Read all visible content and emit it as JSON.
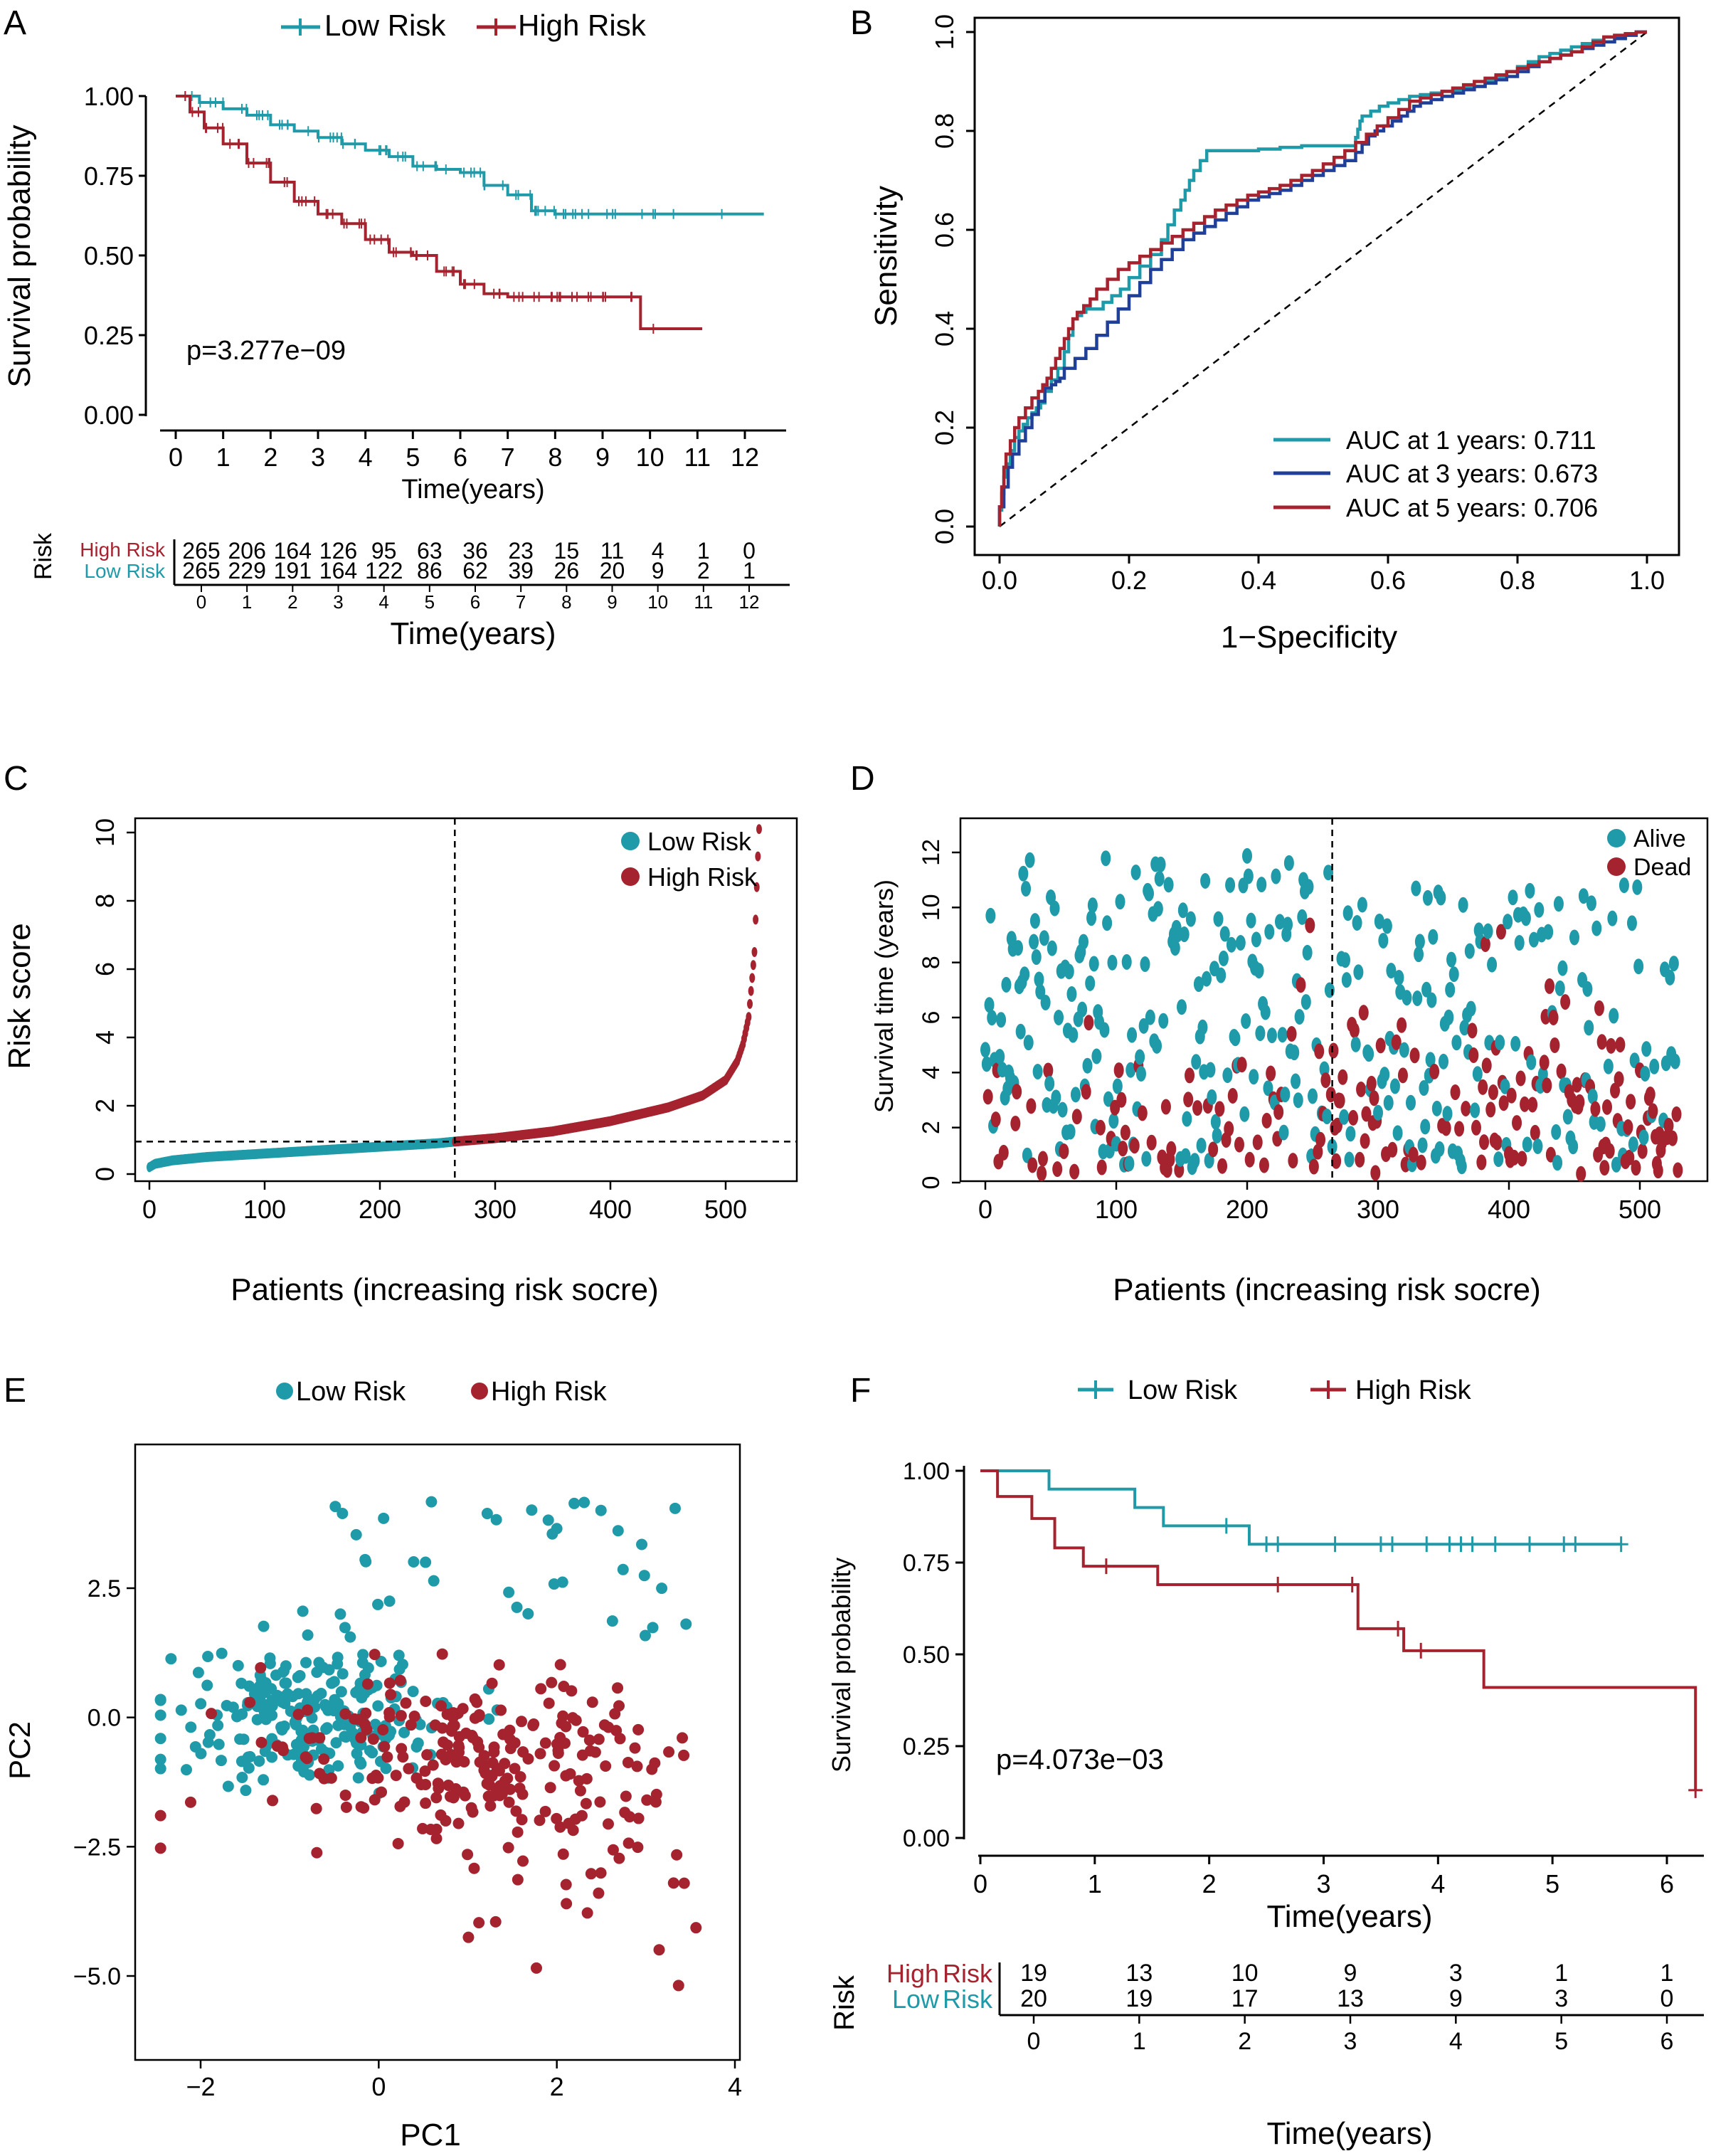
{
  "colors": {
    "teal": "#1f9aa8",
    "red": "#a5232f",
    "navy": "#1f3f98",
    "black": "#000000"
  },
  "chart_data": [
    {
      "panel": "A",
      "type": "line",
      "subtype": "kaplan-meier",
      "legend": [
        "Low Risk",
        "High Risk"
      ],
      "xlabel": "Time(years)",
      "ylabel": "Survival probability",
      "xticks": [
        0,
        1,
        2,
        3,
        4,
        5,
        6,
        7,
        8,
        9,
        10,
        11,
        12
      ],
      "yticks": [
        "0.00",
        "0.25",
        "0.50",
        "0.75",
        "1.00"
      ],
      "xlim": [
        0,
        12.5
      ],
      "ylim": [
        0,
        1
      ],
      "annotation": "p=3.277e−09",
      "series": [
        {
          "name": "Low Risk",
          "x": [
            0,
            0.5,
            1,
            1.5,
            2,
            2.5,
            3,
            3.5,
            4,
            4.5,
            5,
            5.5,
            6,
            6.5,
            7,
            7.5,
            8,
            9,
            10,
            11,
            12,
            12.4
          ],
          "y": [
            1,
            0.98,
            0.96,
            0.94,
            0.91,
            0.89,
            0.87,
            0.85,
            0.83,
            0.81,
            0.78,
            0.77,
            0.76,
            0.72,
            0.69,
            0.64,
            0.63,
            0.63,
            0.63,
            0.63,
            0.63,
            0.63
          ]
        },
        {
          "name": "High Risk",
          "x": [
            0,
            0.3,
            0.6,
            1,
            1.5,
            2,
            2.5,
            3,
            3.5,
            4,
            4.5,
            5,
            5.5,
            6,
            6.5,
            7,
            8,
            9,
            9.5,
            9.8,
            10.5,
            11.1
          ],
          "y": [
            1,
            0.95,
            0.9,
            0.85,
            0.79,
            0.73,
            0.67,
            0.63,
            0.6,
            0.55,
            0.51,
            0.5,
            0.45,
            0.41,
            0.38,
            0.37,
            0.37,
            0.37,
            0.37,
            0.27,
            0.27,
            0.27
          ]
        }
      ],
      "risk_table": {
        "title": "Risk",
        "xlabel": "Time(years)",
        "ticks": [
          0,
          1,
          2,
          3,
          4,
          5,
          6,
          7,
          8,
          9,
          10,
          11,
          12
        ],
        "rows": [
          {
            "label": "High Risk",
            "counts": [
              "265",
              "206",
              "164",
              "126",
              "95",
              "63",
              "36",
              "23",
              "15",
              "11",
              "4",
              "1",
              "0"
            ]
          },
          {
            "label": "Low Risk",
            "counts": [
              "265",
              "229",
              "191",
              "164",
              "122",
              "86",
              "62",
              "39",
              "26",
              "20",
              "9",
              "2",
              "1"
            ]
          }
        ]
      }
    },
    {
      "panel": "B",
      "type": "line",
      "subtype": "roc",
      "xlabel": "1−Specificity",
      "ylabel": "Sensitivity",
      "xticks": [
        "0.0",
        "0.2",
        "0.4",
        "0.6",
        "0.8",
        "1.0"
      ],
      "yticks": [
        "0.0",
        "0.2",
        "0.4",
        "0.6",
        "0.8",
        "1.0"
      ],
      "xlim": [
        0,
        1
      ],
      "ylim": [
        0,
        1
      ],
      "legend_position": "bottom-right",
      "series": [
        {
          "name": "AUC at 1 years: 0.711",
          "x": [
            0,
            0.01,
            0.03,
            0.05,
            0.07,
            0.1,
            0.12,
            0.14,
            0.16,
            0.2,
            0.25,
            0.28,
            0.3,
            0.33,
            0.4,
            0.5,
            0.55,
            0.56,
            0.6,
            0.65,
            0.7,
            0.75,
            0.8,
            0.85,
            0.9,
            0.95,
            1
          ],
          "y": [
            0,
            0.1,
            0.18,
            0.22,
            0.25,
            0.32,
            0.42,
            0.44,
            0.44,
            0.48,
            0.55,
            0.64,
            0.7,
            0.76,
            0.76,
            0.77,
            0.77,
            0.82,
            0.85,
            0.87,
            0.88,
            0.89,
            0.92,
            0.95,
            0.97,
            0.99,
            1
          ]
        },
        {
          "name": "AUC at 3 years: 0.673",
          "x": [
            0,
            0.02,
            0.05,
            0.08,
            0.1,
            0.15,
            0.2,
            0.25,
            0.3,
            0.35,
            0.4,
            0.45,
            0.5,
            0.55,
            0.58,
            0.62,
            0.65,
            0.7,
            0.75,
            0.8,
            0.85,
            0.9,
            0.95,
            1
          ],
          "y": [
            0,
            0.12,
            0.2,
            0.28,
            0.3,
            0.36,
            0.44,
            0.52,
            0.58,
            0.62,
            0.66,
            0.68,
            0.71,
            0.74,
            0.79,
            0.82,
            0.85,
            0.87,
            0.89,
            0.91,
            0.94,
            0.96,
            0.98,
            1
          ]
        },
        {
          "name": "AUC at 5 years: 0.706",
          "x": [
            0,
            0.01,
            0.03,
            0.06,
            0.08,
            0.1,
            0.12,
            0.15,
            0.2,
            0.25,
            0.3,
            0.35,
            0.4,
            0.45,
            0.5,
            0.55,
            0.6,
            0.65,
            0.7,
            0.75,
            0.8,
            0.85,
            0.9,
            0.95,
            1
          ],
          "y": [
            0,
            0.12,
            0.2,
            0.26,
            0.3,
            0.36,
            0.42,
            0.46,
            0.52,
            0.56,
            0.6,
            0.64,
            0.67,
            0.69,
            0.72,
            0.76,
            0.81,
            0.86,
            0.88,
            0.9,
            0.92,
            0.94,
            0.96,
            0.99,
            1
          ]
        }
      ]
    },
    {
      "panel": "C",
      "type": "scatter",
      "subtype": "risk-score-curve",
      "xlabel": "Patients (increasing risk socre)",
      "ylabel": "Risk score",
      "xticks": [
        "0",
        "100",
        "200",
        "300",
        "400",
        "500"
      ],
      "yticks": [
        "0",
        "2",
        "4",
        "6",
        "8",
        "10"
      ],
      "xlim": [
        -10,
        540
      ],
      "ylim": [
        -0.3,
        10.3
      ],
      "legend": [
        "Low Risk",
        "High Risk"
      ],
      "n_patients": 530,
      "cutoff_patient": 265,
      "cutoff_score": 0.95,
      "score_quantiles": {
        "rank": [
          0,
          5,
          20,
          50,
          100,
          150,
          200,
          250,
          265,
          300,
          350,
          400,
          450,
          480,
          500,
          510,
          515,
          520,
          525,
          527,
          528,
          529
        ],
        "score": [
          0.2,
          0.3,
          0.4,
          0.5,
          0.6,
          0.7,
          0.8,
          0.9,
          0.95,
          1.05,
          1.25,
          1.55,
          1.95,
          2.3,
          2.75,
          3.3,
          3.8,
          4.6,
          6.5,
          8.4,
          9.3,
          10.1
        ]
      }
    },
    {
      "panel": "D",
      "type": "scatter",
      "subtype": "survival-status",
      "xlabel": "Patients (increasing risk socre)",
      "ylabel": "Survival time (years)",
      "xticks": [
        "0",
        "100",
        "200",
        "300",
        "400",
        "500"
      ],
      "yticks": [
        "0",
        "2",
        "4",
        "6",
        "8",
        "10",
        "12"
      ],
      "xlim": [
        -10,
        540
      ],
      "ylim": [
        0,
        13
      ],
      "legend": [
        "Alive",
        "Dead"
      ],
      "cutoff_patient": 265,
      "n_patients": 530
    },
    {
      "panel": "E",
      "type": "scatter",
      "subtype": "pca",
      "xlabel": "PC1",
      "ylabel": "PC2",
      "xticks": [
        "−2",
        "0",
        "2",
        "4"
      ],
      "yticks": [
        "−5.0",
        "−2.5",
        "0.0",
        "2.5"
      ],
      "xlim": [
        -2.6,
        4.1
      ],
      "ylim": [
        -5.8,
        4.5
      ],
      "legend": [
        "Low Risk",
        "High Risk"
      ],
      "groups": [
        {
          "name": "Low Risk",
          "center": [
            -0.8,
            0.1
          ],
          "spread": [
            0.8,
            0.7
          ]
        },
        {
          "name": "High Risk",
          "center": [
            1.0,
            -0.9
          ],
          "spread": [
            1.1,
            0.9
          ]
        }
      ]
    },
    {
      "panel": "F",
      "type": "line",
      "subtype": "kaplan-meier",
      "legend": [
        "Low Risk",
        "High Risk"
      ],
      "xlabel": "Time(years)",
      "ylabel": "Survival probability",
      "xticks": [
        0,
        1,
        2,
        3,
        4,
        5,
        6
      ],
      "yticks": [
        "0.00",
        "0.25",
        "0.50",
        "0.75",
        "1.00"
      ],
      "xlim": [
        -0.1,
        6.3
      ],
      "ylim": [
        -0.03,
        1.03
      ],
      "annotation": "p=4.073e−03",
      "series": [
        {
          "name": "Low Risk",
          "x": [
            0,
            0.6,
            1.35,
            1.6,
            2.35,
            5.6
          ],
          "y": [
            1,
            0.95,
            0.9,
            0.85,
            0.8,
            0.8
          ],
          "censor_x": [
            2.15,
            2.5,
            2.6,
            3.1,
            3.5,
            3.6,
            3.9,
            4.1,
            4.2,
            4.3,
            4.5,
            4.8,
            5.1,
            5.2,
            5.6
          ]
        },
        {
          "name": "High Risk",
          "x": [
            0,
            0.15,
            0.45,
            0.65,
            0.9,
            1.55,
            3.3,
            3.7,
            4.4,
            6.25
          ],
          "y": [
            1,
            0.93,
            0.87,
            0.79,
            0.74,
            0.69,
            0.57,
            0.51,
            0.41,
            0.13
          ],
          "censor_x": [
            1.1,
            2.6,
            3.25,
            3.65,
            3.85,
            6.25
          ]
        }
      ],
      "risk_table": {
        "title": "Risk",
        "xlabel": "Time(years)",
        "ticks": [
          0,
          1,
          2,
          3,
          4,
          5,
          6
        ],
        "rows": [
          {
            "label_a": "High",
            "label_b": "Risk",
            "counts": [
              "19",
              "13",
              "10",
              "9",
              "3",
              "1",
              "1"
            ]
          },
          {
            "label_a": "Low",
            "label_b": "Risk",
            "counts": [
              "20",
              "19",
              "17",
              "13",
              "9",
              "3",
              "0"
            ]
          }
        ]
      }
    }
  ],
  "panel_labels": [
    "A",
    "B",
    "C",
    "D",
    "E",
    "F"
  ]
}
